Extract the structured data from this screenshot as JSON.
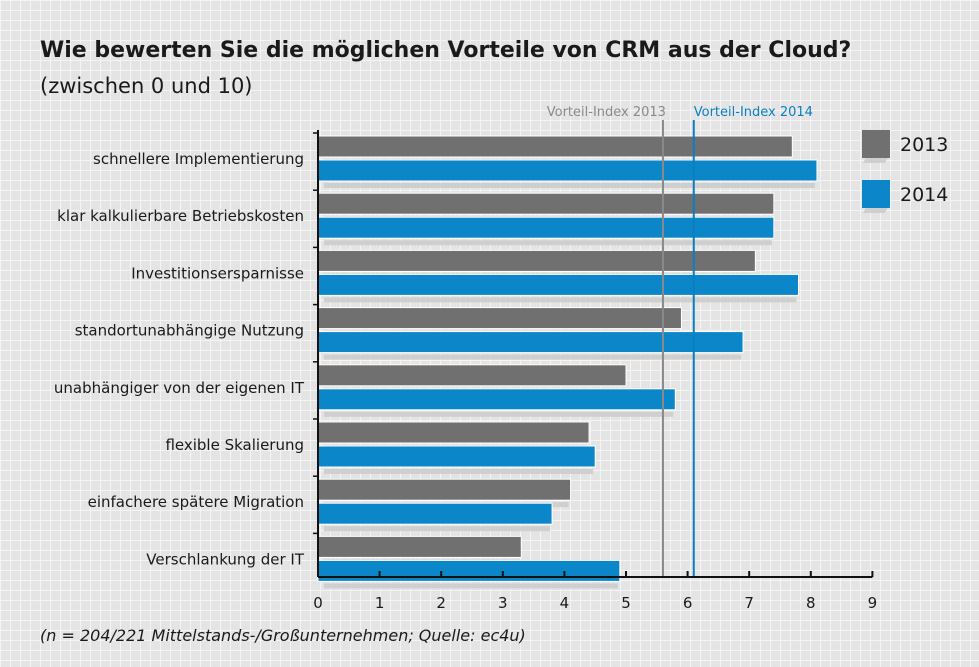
{
  "header": {
    "title": "Wie bewerten Sie die möglichen Vorteile von CRM aus der Cloud?",
    "subtitle": "(zwischen 0 und 10)"
  },
  "footnote": "(n = 204/221 Mittelstands-/Großunternehmen; Quelle: ec4u)",
  "colors": {
    "series_2013": "#707070",
    "series_2014": "#0a86c9",
    "ref_2013": "#8a8a8a",
    "ref_2014": "#0a7fbf",
    "shadow": "#cfcfcf",
    "axis": "#111111"
  },
  "chart_data": {
    "type": "bar",
    "orientation": "horizontal",
    "title": "Wie bewerten Sie die möglichen Vorteile von CRM aus der Cloud?",
    "subtitle": "(zwischen 0 und 10)",
    "categories": [
      "schnellere Implementierung",
      "klar kalkulierbare Betriebskosten",
      "Investitionsersparnisse",
      "standortunabhängige Nutzung",
      "unabhängiger von der eigenen IT",
      "flexible Skalierung",
      "einfachere spätere Migration",
      "Verschlankung der IT"
    ],
    "series": [
      {
        "name": "2013",
        "values": [
          7.7,
          7.4,
          7.1,
          5.9,
          5.0,
          4.4,
          4.1,
          3.3
        ]
      },
      {
        "name": "2014",
        "values": [
          8.1,
          7.4,
          7.8,
          6.9,
          5.8,
          4.5,
          3.8,
          4.9
        ]
      }
    ],
    "xlim": [
      0,
      9
    ],
    "xticks": [
      0,
      1,
      2,
      3,
      4,
      5,
      6,
      7,
      8,
      9
    ],
    "reference_lines": [
      {
        "label": "Vorteil-Index 2013",
        "value": 5.6
      },
      {
        "label": "Vorteil-Index 2014",
        "value": 6.1
      }
    ],
    "legend": {
      "placement": "right",
      "entries": [
        "2013",
        "2014"
      ]
    },
    "grid": false
  }
}
